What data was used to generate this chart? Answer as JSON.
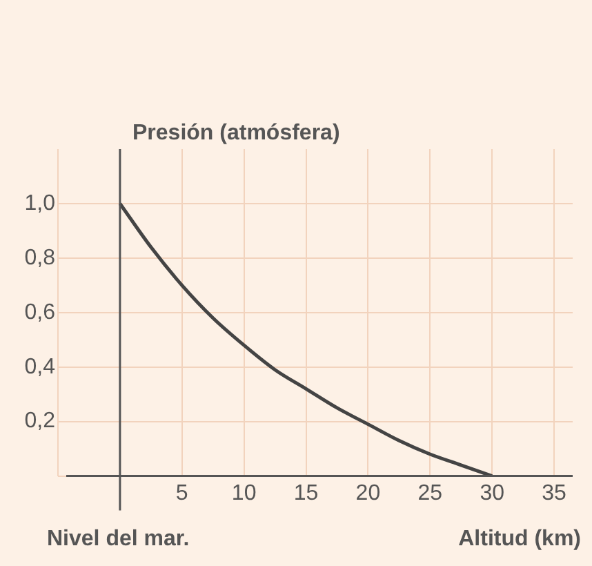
{
  "chart_data": {
    "type": "line",
    "ylabel": "Presión (atmósfera)",
    "xlabel": "Altitud (km)",
    "annotations": [
      "Nivel del mar."
    ],
    "x": [
      0,
      2.5,
      5,
      7.5,
      10,
      12.5,
      15,
      17.5,
      20,
      22.5,
      25,
      27.5,
      30
    ],
    "series": [
      {
        "color": "#444444",
        "values": [
          1.0,
          0.84,
          0.7,
          0.58,
          0.48,
          0.39,
          0.32,
          0.25,
          0.19,
          0.13,
          0.08,
          0.04,
          0
        ]
      }
    ],
    "xlim": [
      -5,
      36.5
    ],
    "xticks": [
      {
        "value": -5,
        "label": null
      },
      {
        "value": 0,
        "label": null
      },
      5,
      10,
      15,
      20,
      25,
      30,
      35
    ],
    "ylim": [
      0,
      1.2
    ],
    "yticks": [
      {
        "value": 0,
        "label": null
      },
      {
        "value": 0.2,
        "label": "0,2"
      },
      {
        "value": 0.4,
        "label": "0,4"
      },
      {
        "value": 0.6,
        "label": "0,6"
      },
      {
        "value": 0.8,
        "label": "0,8"
      },
      {
        "value": 1.0,
        "label": "1,0"
      }
    ],
    "grid": true,
    "legend": false,
    "marker": "none",
    "line_style": "solid"
  }
}
